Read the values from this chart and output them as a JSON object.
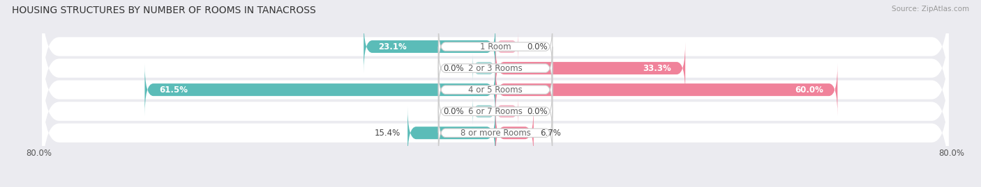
{
  "title": "HOUSING STRUCTURES BY NUMBER OF ROOMS IN TANACROSS",
  "source": "Source: ZipAtlas.com",
  "categories": [
    "1 Room",
    "2 or 3 Rooms",
    "4 or 5 Rooms",
    "6 or 7 Rooms",
    "8 or more Rooms"
  ],
  "owner_values": [
    23.1,
    0.0,
    61.5,
    0.0,
    15.4
  ],
  "renter_values": [
    0.0,
    33.3,
    60.0,
    0.0,
    6.7
  ],
  "owner_color": "#5bbcb8",
  "renter_color": "#f0829a",
  "xlim": [
    -80.0,
    80.0
  ],
  "bar_height": 0.58,
  "background_color": "#ebebf0",
  "row_background": "#ffffff",
  "title_fontsize": 10,
  "label_fontsize": 8.5,
  "tick_fontsize": 8.5,
  "source_fontsize": 7.5
}
